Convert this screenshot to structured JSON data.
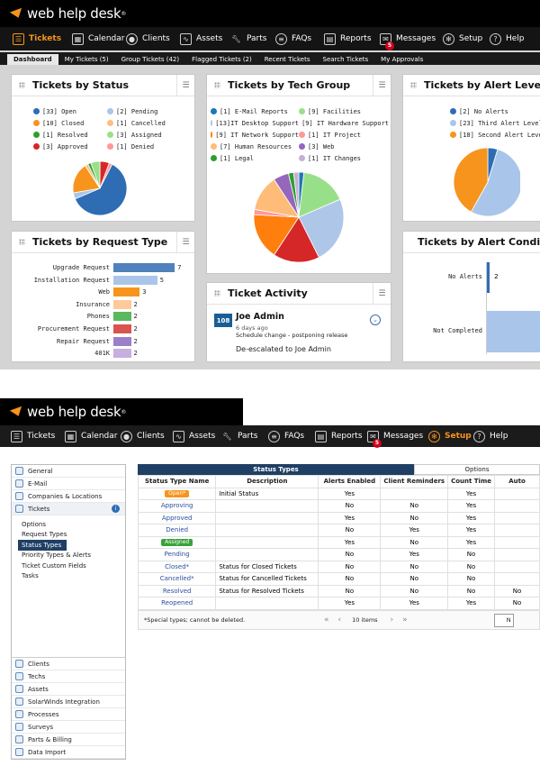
{
  "brand": {
    "name": "web help desk",
    "tm": "®"
  },
  "screen1": {
    "nav": [
      "Tickets",
      "Calendar",
      "Clients",
      "Assets",
      "Parts",
      "FAQs",
      "Reports",
      "Messages",
      "Setup",
      "Help"
    ],
    "messages_badge": "5",
    "subtabs": [
      "Dashboard",
      "My Tickets (5)",
      "Group Tickets (42)",
      "Flagged Tickets (2)",
      "Recent Tickets",
      "Search Tickets",
      "My Approvals"
    ],
    "status": {
      "title": "Tickets by Status",
      "legend": [
        {
          "label": "[33] Open",
          "color": "#2e6db4"
        },
        {
          "label": "[2] Pending",
          "color": "#a9c6ea"
        },
        {
          "label": "[10] Closed",
          "color": "#f7941d"
        },
        {
          "label": "[1] Cancelled",
          "color": "#ffbf80"
        },
        {
          "label": "[1] Resolved",
          "color": "#2ca02c"
        },
        {
          "label": "[3] Assigned",
          "color": "#98df8a"
        },
        {
          "label": "[3] Approved",
          "color": "#d62728"
        },
        {
          "label": "[1] Denied",
          "color": "#ff9896"
        }
      ],
      "values": [
        33,
        2,
        10,
        1,
        1,
        3,
        3,
        1
      ]
    },
    "techgroup": {
      "title": "Tickets by Tech Group",
      "legend": [
        {
          "label": "[1] E-Mail Reports",
          "color": "#1f77b4"
        },
        {
          "label": "[9] Facilities",
          "color": "#98df8a"
        },
        {
          "label": "[13]IT Desktop Support",
          "color": "#aec7e8"
        },
        {
          "label": "[9] IT Hardware Support",
          "color": "#d62728"
        },
        {
          "label": "[9] IT Network Support",
          "color": "#ff7f0e"
        },
        {
          "label": "[1] IT Project",
          "color": "#ff9896"
        },
        {
          "label": "[7] Human Resources",
          "color": "#ffbb78"
        },
        {
          "label": "[3] Web",
          "color": "#9467bd"
        },
        {
          "label": "[1] Legal",
          "color": "#2ca02c"
        },
        {
          "label": "[1] IT Changes",
          "color": "#c5b0d5"
        }
      ],
      "values": [
        1,
        9,
        13,
        9,
        9,
        1,
        7,
        3,
        1,
        1
      ]
    },
    "alert": {
      "title": "Tickets by Alert Level",
      "legend": [
        {
          "label": "[2] No Alerts",
          "color": "#2e6db4"
        },
        {
          "label": "[23] Third Alert Level",
          "color": "#a9c6ea"
        },
        {
          "label": "[18] Second Alert Level",
          "color": "#f7941d"
        }
      ],
      "values": [
        2,
        23,
        18
      ]
    },
    "request": {
      "title": "Tickets by Request Type",
      "rows": [
        {
          "label": "Upgrade Request",
          "value": 7,
          "color": "#4f81bd"
        },
        {
          "label": "Installation Request",
          "value": 5,
          "color": "#a9c6ea"
        },
        {
          "label": "Web",
          "value": 3,
          "color": "#f7941d"
        },
        {
          "label": "Insurance",
          "value": 2,
          "color": "#ffc999"
        },
        {
          "label": "Phones",
          "value": 2,
          "color": "#5cb85c"
        },
        {
          "label": "Procurement Request",
          "value": 2,
          "color": "#d9534f"
        },
        {
          "label": "Repair Request",
          "value": 2,
          "color": "#9c7fc9"
        },
        {
          "label": "401K",
          "value": 2,
          "color": "#c5b0e0"
        }
      ]
    },
    "condition": {
      "title": "Tickets by Alert Condition",
      "rows": [
        {
          "label": "No Alerts",
          "value": 2,
          "color": "#2e6db4"
        },
        {
          "label": "Not Completed",
          "value": 41,
          "color": "#a9c6ea"
        }
      ]
    },
    "activity": {
      "title": "Ticket Activity",
      "ticket": "108",
      "name": "Joe Admin",
      "ago": "6 days ago",
      "change": "Schedule change - postponing release",
      "note": "De-escalated to Joe Admin"
    }
  },
  "screen2": {
    "nav": [
      "Tickets",
      "Calendar",
      "Clients",
      "Assets",
      "Parts",
      "FAQs",
      "Reports",
      "Messages",
      "Setup",
      "Help"
    ],
    "messages_badge": "5",
    "sidebar_top": [
      "General",
      "E-Mail",
      "Companies & Locations",
      "Tickets"
    ],
    "sidebar_sub": [
      "Options",
      "Request Types",
      "Status Types",
      "Priority Types & Alerts",
      "Ticket Custom Fields",
      "Tasks"
    ],
    "sidebar_bottom": [
      "Clients",
      "Techs",
      "Assets",
      "SolarWinds Integration",
      "Processes",
      "Surveys",
      "Parts & Billing",
      "Data Import"
    ],
    "tab_active": "Status Types",
    "tab_other": "Options",
    "columns": [
      "Status Type Name",
      "Description",
      "Alerts Enabled",
      "Client Reminders",
      "Count Time",
      "Auto"
    ],
    "rows": [
      {
        "name": "Open*",
        "pill": "#f7941d",
        "desc": "Initial Status",
        "alerts": "Yes",
        "rem": "",
        "count": "Yes",
        "auto": ""
      },
      {
        "name": "Approving",
        "pill": "",
        "desc": "",
        "alerts": "No",
        "rem": "No",
        "count": "Yes",
        "auto": ""
      },
      {
        "name": "Approved",
        "pill": "",
        "desc": "",
        "alerts": "Yes",
        "rem": "No",
        "count": "Yes",
        "auto": ""
      },
      {
        "name": "Denied",
        "pill": "",
        "desc": "",
        "alerts": "No",
        "rem": "Yes",
        "count": "Yes",
        "auto": ""
      },
      {
        "name": "Assigned",
        "pill": "#3aa23a",
        "desc": "",
        "alerts": "Yes",
        "rem": "No",
        "count": "Yes",
        "auto": ""
      },
      {
        "name": "Pending",
        "pill": "",
        "desc": "",
        "alerts": "No",
        "rem": "Yes",
        "count": "No",
        "auto": ""
      },
      {
        "name": "Closed*",
        "pill": "",
        "desc": "Status for Closed Tickets",
        "alerts": "No",
        "rem": "No",
        "count": "No",
        "auto": ""
      },
      {
        "name": "Cancelled*",
        "pill": "",
        "desc": "Status for Cancelled Tickets",
        "alerts": "No",
        "rem": "No",
        "count": "No",
        "auto": ""
      },
      {
        "name": "Resolved",
        "pill": "",
        "desc": "Status for Resolved Tickets",
        "alerts": "No",
        "rem": "No",
        "count": "No",
        "auto": "No"
      },
      {
        "name": "Reopened",
        "pill": "",
        "desc": "",
        "alerts": "Yes",
        "rem": "Yes",
        "count": "Yes",
        "auto": "No"
      }
    ],
    "footnote": "*Special types; cannot be deleted.",
    "pager": "10 items",
    "btn": "N"
  }
}
